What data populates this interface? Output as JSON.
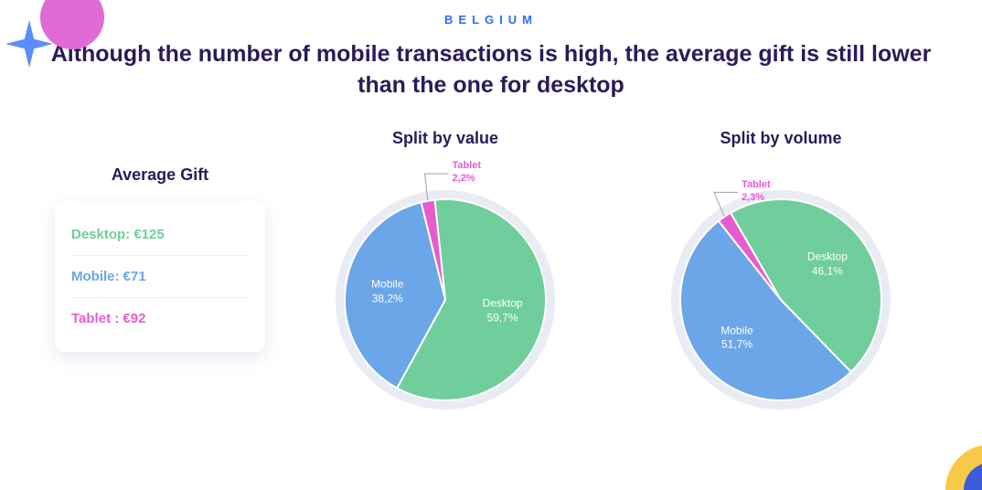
{
  "eyebrow": "BELGIUM",
  "headline": "Although the number of mobile transactions is high, the average gift is still lower than the one for desktop",
  "colors": {
    "desktop": "#6fce9c",
    "mobile": "#6aa6e8",
    "tablet": "#e65cd0",
    "heading": "#2b1b5a",
    "eyebrow": "#2d6cff",
    "ring": "#e9ecf2",
    "background": "#ffffff"
  },
  "average_gift": {
    "title": "Average Gift",
    "rows": [
      {
        "key": "desktop",
        "label": "Desktop: €125",
        "color": "#6fce9c"
      },
      {
        "key": "mobile",
        "label": "Mobile: €71",
        "color": "#6aa6e8"
      },
      {
        "key": "tablet",
        "label": "Tablet : €92",
        "color": "#e65cd0"
      }
    ]
  },
  "charts": [
    {
      "id": "by-value",
      "title": "Split by value",
      "type": "pie",
      "slices": [
        {
          "key": "desktop",
          "name": "Desktop",
          "pct": 59.7,
          "display": "59,7%",
          "color": "#6fce9c"
        },
        {
          "key": "mobile",
          "name": "Mobile",
          "pct": 38.2,
          "display": "38,2%",
          "color": "#6aa6e8"
        },
        {
          "key": "tablet",
          "name": "Tablet",
          "pct": 2.2,
          "display": "2,2%",
          "color": "#e65cd0",
          "callout": true
        }
      ],
      "start_angle_deg": -6,
      "radius": 110,
      "ring_outer": 120,
      "ring_color": "#e9ecf2",
      "label_fontsize": 12
    },
    {
      "id": "by-volume",
      "title": "Split by volume",
      "type": "pie",
      "slices": [
        {
          "key": "desktop",
          "name": "Desktop",
          "pct": 46.1,
          "display": "46,1%",
          "color": "#6fce9c"
        },
        {
          "key": "mobile",
          "name": "Mobile",
          "pct": 51.7,
          "display": "51,7%",
          "color": "#6aa6e8"
        },
        {
          "key": "tablet",
          "name": "Tablet",
          "pct": 2.3,
          "display": "2,3%",
          "color": "#e65cd0",
          "callout": true
        }
      ],
      "start_angle_deg": -30,
      "radius": 110,
      "ring_outer": 120,
      "ring_color": "#e9ecf2",
      "label_fontsize": 12
    }
  ],
  "decor": {
    "star_color": "#5a8dff",
    "pink_blob": "#e06bd4",
    "corner_yellow": "#f7c948",
    "corner_blue": "#3b5bdb"
  }
}
